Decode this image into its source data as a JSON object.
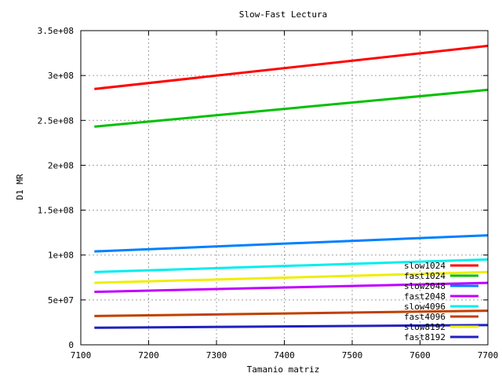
{
  "chart_data": {
    "type": "line",
    "title": "Slow-Fast Lectura",
    "xlabel": "Tamanio matriz",
    "ylabel": "D1 MR",
    "xlim": [
      7100,
      7700
    ],
    "ylim": [
      0,
      350000000
    ],
    "x_ticks": [
      7100,
      7200,
      7300,
      7400,
      7500,
      7600,
      7700
    ],
    "x_tick_labels": [
      "7100",
      "7200",
      "7300",
      "7400",
      "7500",
      "7600",
      "7700"
    ],
    "y_ticks": [
      0,
      50000000,
      100000000,
      150000000,
      200000000,
      250000000,
      300000000,
      350000000
    ],
    "y_tick_labels": [
      "0",
      "5e+07",
      "1e+08",
      "1.5e+08",
      "2e+08",
      "2.5e+08",
      "3e+08",
      "3.5e+08"
    ],
    "grid": true,
    "legend_position": "bottom-right",
    "x": [
      7120,
      7700
    ],
    "series": [
      {
        "name": "slow1024",
        "color": "#ff0000",
        "values": [
          285000000,
          333000000
        ]
      },
      {
        "name": "fast1024",
        "color": "#00c000",
        "values": [
          243000000,
          284000000
        ]
      },
      {
        "name": "slow2048",
        "color": "#0080ff",
        "values": [
          104000000,
          122000000
        ]
      },
      {
        "name": "fast2048",
        "color": "#c000ff",
        "values": [
          59000000,
          69000000
        ]
      },
      {
        "name": "slow4096",
        "color": "#00eeee",
        "values": [
          81000000,
          95000000
        ]
      },
      {
        "name": "fast4096",
        "color": "#c04000",
        "values": [
          32000000,
          38000000
        ]
      },
      {
        "name": "slow8192",
        "color": "#eeee00",
        "values": [
          69000000,
          81000000
        ]
      },
      {
        "name": "fast8192",
        "color": "#2020c0",
        "values": [
          19000000,
          22000000
        ]
      }
    ]
  }
}
